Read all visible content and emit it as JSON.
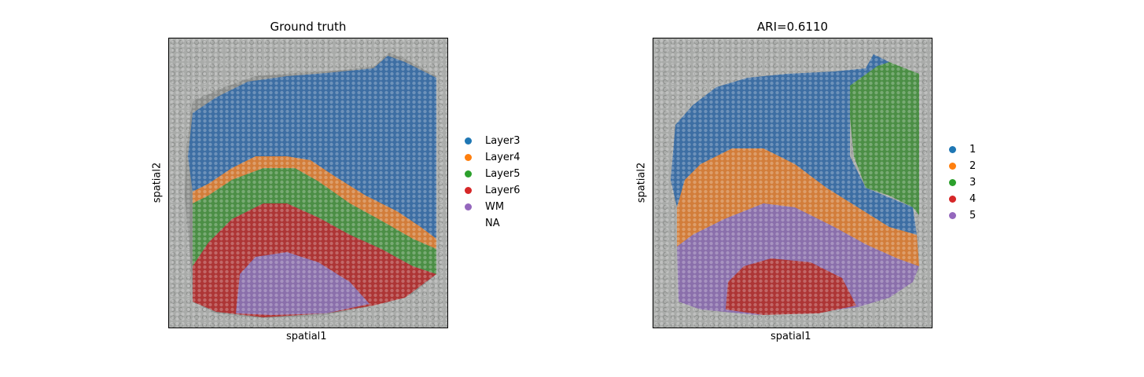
{
  "chart_data": [
    {
      "type": "scatter",
      "title": "Ground truth",
      "xlabel": "spatial1",
      "ylabel": "spatial2",
      "grid": false,
      "legend_placement": "right",
      "legend": [
        {
          "label": "Layer3",
          "color": "#1f77b4"
        },
        {
          "label": "Layer4",
          "color": "#ff7f0e"
        },
        {
          "label": "Layer5",
          "color": "#2ca02c"
        },
        {
          "label": "Layer6",
          "color": "#d62728"
        },
        {
          "label": "WM",
          "color": "#9467bd"
        },
        {
          "label": "NA",
          "color": ""
        }
      ]
    },
    {
      "type": "scatter",
      "title": "ARI=0.6110",
      "xlabel": "spatial1",
      "ylabel": "spatial2",
      "grid": false,
      "legend_placement": "right",
      "legend": [
        {
          "label": "1",
          "color": "#1f77b4"
        },
        {
          "label": "2",
          "color": "#ff7f0e"
        },
        {
          "label": "3",
          "color": "#2ca02c"
        },
        {
          "label": "4",
          "color": "#d62728"
        },
        {
          "label": "5",
          "color": "#9467bd"
        }
      ]
    }
  ]
}
